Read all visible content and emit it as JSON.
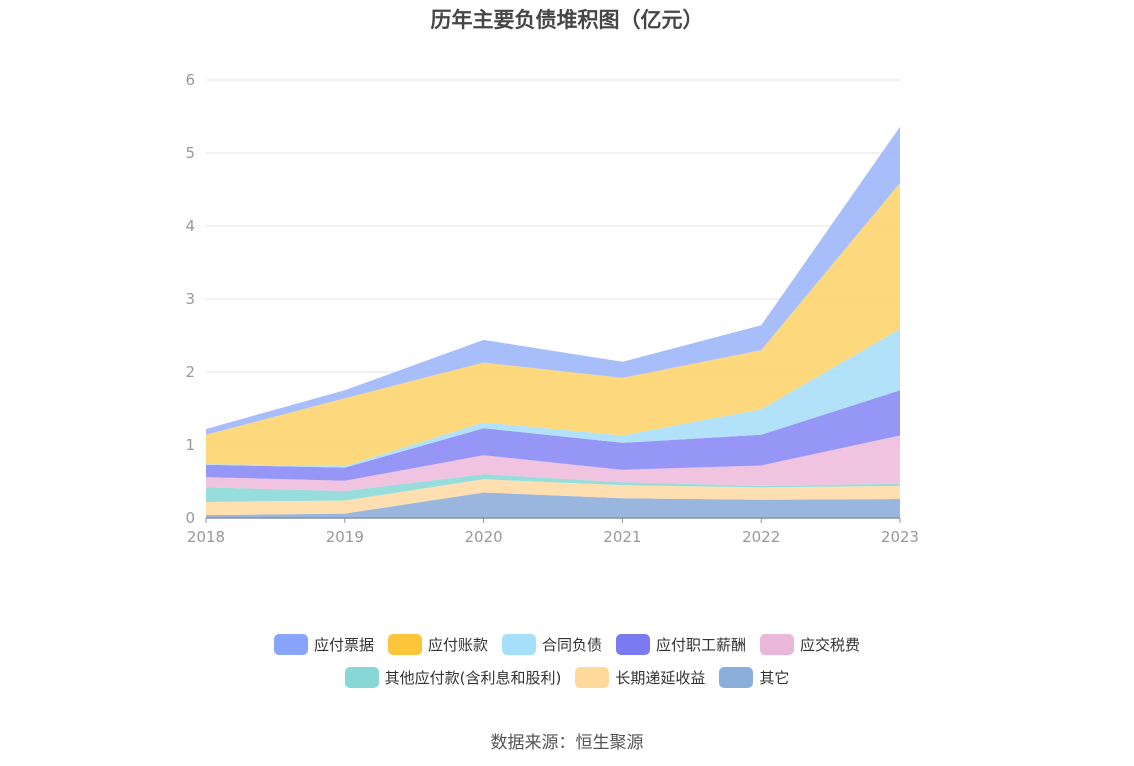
{
  "chart_data": {
    "type": "area",
    "stacked": true,
    "title": "历年主要负债堆积图（亿元）",
    "categories": [
      "2018",
      "2019",
      "2020",
      "2021",
      "2022",
      "2023"
    ],
    "ylim": [
      0,
      6
    ],
    "yticks": [
      0,
      1,
      2,
      3,
      4,
      5,
      6
    ],
    "grid": true,
    "legend_position": "bottom",
    "series": [
      {
        "name": "其它",
        "color": "#8eaedc",
        "values": [
          0.04,
          0.06,
          0.35,
          0.27,
          0.25,
          0.26
        ]
      },
      {
        "name": "长期递延收益",
        "color": "#ffdca6",
        "values": [
          0.18,
          0.18,
          0.18,
          0.18,
          0.17,
          0.18
        ]
      },
      {
        "name": "其他应付款(含利息和股利)",
        "color": "#8bd9d8",
        "values": [
          0.2,
          0.13,
          0.07,
          0.04,
          0.02,
          0.03
        ]
      },
      {
        "name": "应交税费",
        "color": "#eebcdd",
        "values": [
          0.14,
          0.14,
          0.26,
          0.17,
          0.28,
          0.66
        ]
      },
      {
        "name": "应付职工薪酬",
        "color": "#8b8bf5",
        "values": [
          0.17,
          0.18,
          0.37,
          0.37,
          0.42,
          0.62
        ]
      },
      {
        "name": "合同负债",
        "color": "#a9dffa",
        "values": [
          0.01,
          0.02,
          0.08,
          0.1,
          0.35,
          0.84
        ]
      },
      {
        "name": "应付账款",
        "color": "#fdd46f",
        "values": [
          0.4,
          0.93,
          0.82,
          0.79,
          0.81,
          2.0
        ]
      },
      {
        "name": "应付票据",
        "color": "#9fb7fb",
        "values": [
          0.08,
          0.11,
          0.31,
          0.22,
          0.34,
          0.77
        ]
      }
    ]
  },
  "legend": {
    "rows": [
      [
        {
          "label": "应付票据",
          "color": "#89a5fb"
        },
        {
          "label": "应付账款",
          "color": "#fcc53b"
        },
        {
          "label": "合同负债",
          "color": "#a6dff9"
        },
        {
          "label": "应付职工薪酬",
          "color": "#7b7bf1"
        },
        {
          "label": "应交税费",
          "color": "#e9b7d9"
        }
      ],
      [
        {
          "label": "其他应付款(含利息和股利)",
          "color": "#86d7d5"
        },
        {
          "label": "长期递延收益",
          "color": "#ffd99c"
        },
        {
          "label": "其它",
          "color": "#8caedb"
        }
      ]
    ]
  },
  "source": "数据来源：恒生聚源"
}
